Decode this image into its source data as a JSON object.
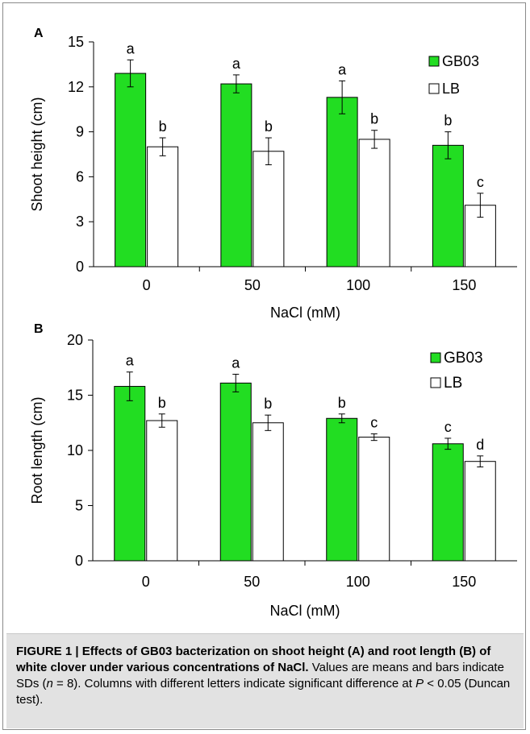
{
  "chart_data": [
    {
      "type": "bar",
      "panel_label": "A",
      "categories": [
        "0",
        "50",
        "100",
        "150"
      ],
      "xlabel": "NaCl (mM)",
      "ylabel": "Shoot height (cm)",
      "ylim": [
        0,
        15
      ],
      "yticks": [
        0,
        3,
        6,
        9,
        12,
        15
      ],
      "grid": false,
      "legend_placement": "top-right",
      "series": [
        {
          "name": "GB03",
          "color": "#22dd22",
          "values": [
            12.9,
            12.2,
            11.3,
            8.1
          ],
          "errors": [
            0.9,
            0.6,
            1.1,
            0.9
          ],
          "letters": [
            "a",
            "a",
            "a",
            "b"
          ]
        },
        {
          "name": "LB",
          "color": "#ffffff",
          "values": [
            8.0,
            7.7,
            8.5,
            4.1
          ],
          "errors": [
            0.6,
            0.9,
            0.6,
            0.8
          ],
          "letters": [
            "b",
            "b",
            "b",
            "c"
          ]
        }
      ]
    },
    {
      "type": "bar",
      "panel_label": "B",
      "categories": [
        "0",
        "50",
        "100",
        "150"
      ],
      "xlabel": "NaCl (mM)",
      "ylabel": "Root length (cm)",
      "ylim": [
        0,
        20
      ],
      "yticks": [
        0,
        5,
        10,
        15,
        20
      ],
      "grid": false,
      "legend_placement": "top-right",
      "series": [
        {
          "name": "GB03",
          "color": "#22dd22",
          "values": [
            15.8,
            16.1,
            12.9,
            10.6
          ],
          "errors": [
            1.3,
            0.8,
            0.4,
            0.5
          ],
          "letters": [
            "a",
            "a",
            "b",
            "c"
          ]
        },
        {
          "name": "LB",
          "color": "#ffffff",
          "values": [
            12.7,
            12.5,
            11.2,
            9.0
          ],
          "errors": [
            0.6,
            0.7,
            0.3,
            0.5
          ],
          "letters": [
            "b",
            "b",
            "c",
            "d"
          ]
        }
      ]
    }
  ],
  "caption": {
    "bold": "FIGURE 1 | Effects of GB03 bacterization on shoot height (A) and root length (B) of white clover under various concentrations of NaCl.",
    "text1": " Values are means and bars indicate SDs (",
    "n_var": "n",
    "text2": " = 8). Columns with different letters indicate significant difference at ",
    "p_var": "P",
    "text3": " < 0.05 (Duncan test)."
  }
}
